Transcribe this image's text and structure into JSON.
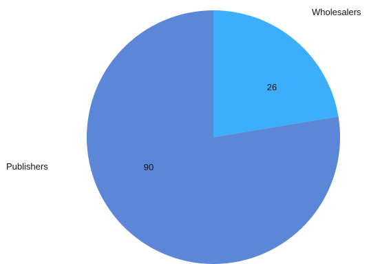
{
  "chart_data": {
    "type": "pie",
    "slices": [
      {
        "label": "Wholesalers",
        "value": 26,
        "color": "#3daefc"
      },
      {
        "label": "Publishers",
        "value": 90,
        "color": "#5b87d6"
      }
    ],
    "start_angle_deg": 0,
    "direction": "clockwise",
    "show_values": true,
    "legend": "none"
  }
}
